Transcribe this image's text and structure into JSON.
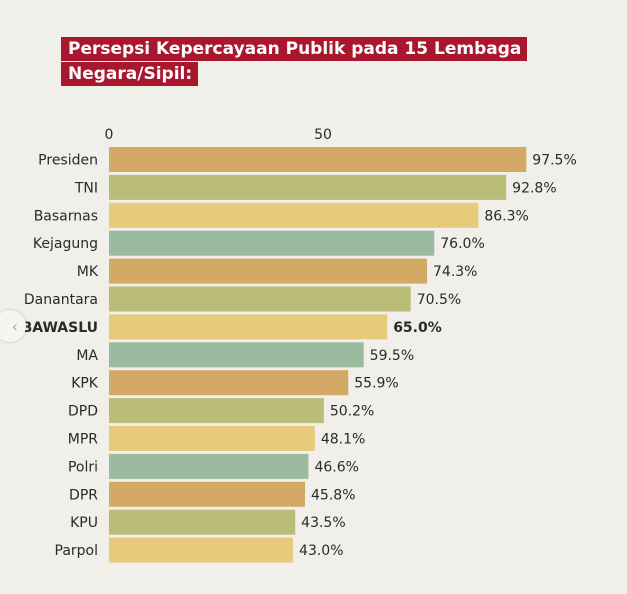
{
  "chart_data": {
    "type": "bar",
    "orientation": "horizontal",
    "title": "Persepsi Kepercayaan Publik pada 15 Lembaga Negara/Sipil:",
    "categories": [
      "Presiden",
      "TNI",
      "Basarnas",
      "Kejagung",
      "MK",
      "Danantara",
      "BAWASLU",
      "MA",
      "KPK",
      "DPD",
      "MPR",
      "Polri",
      "DPR",
      "KPU",
      "Parpol"
    ],
    "values": [
      97.5,
      92.8,
      86.3,
      76.0,
      74.3,
      70.5,
      65.0,
      59.5,
      55.9,
      50.2,
      48.1,
      46.6,
      45.8,
      43.5,
      43.0
    ],
    "value_labels": [
      "97.5%",
      "92.8%",
      "86.3%",
      "76.0%",
      "74.3%",
      "70.5%",
      "65.0%",
      "59.5%",
      "55.9%",
      "50.2%",
      "48.1%",
      "46.6%",
      "45.8%",
      "43.5%",
      "43.0%"
    ],
    "highlighted": "BAWASLU",
    "x_ticks": [
      "0",
      "50"
    ],
    "xlim": [
      0,
      100
    ],
    "axis_position": "top",
    "grid": false,
    "colors": [
      "#d3a965",
      "#b9bd78",
      "#e7ca7c",
      "#9bbaa0"
    ]
  },
  "nav": {
    "icon": "chevron-left-icon"
  }
}
